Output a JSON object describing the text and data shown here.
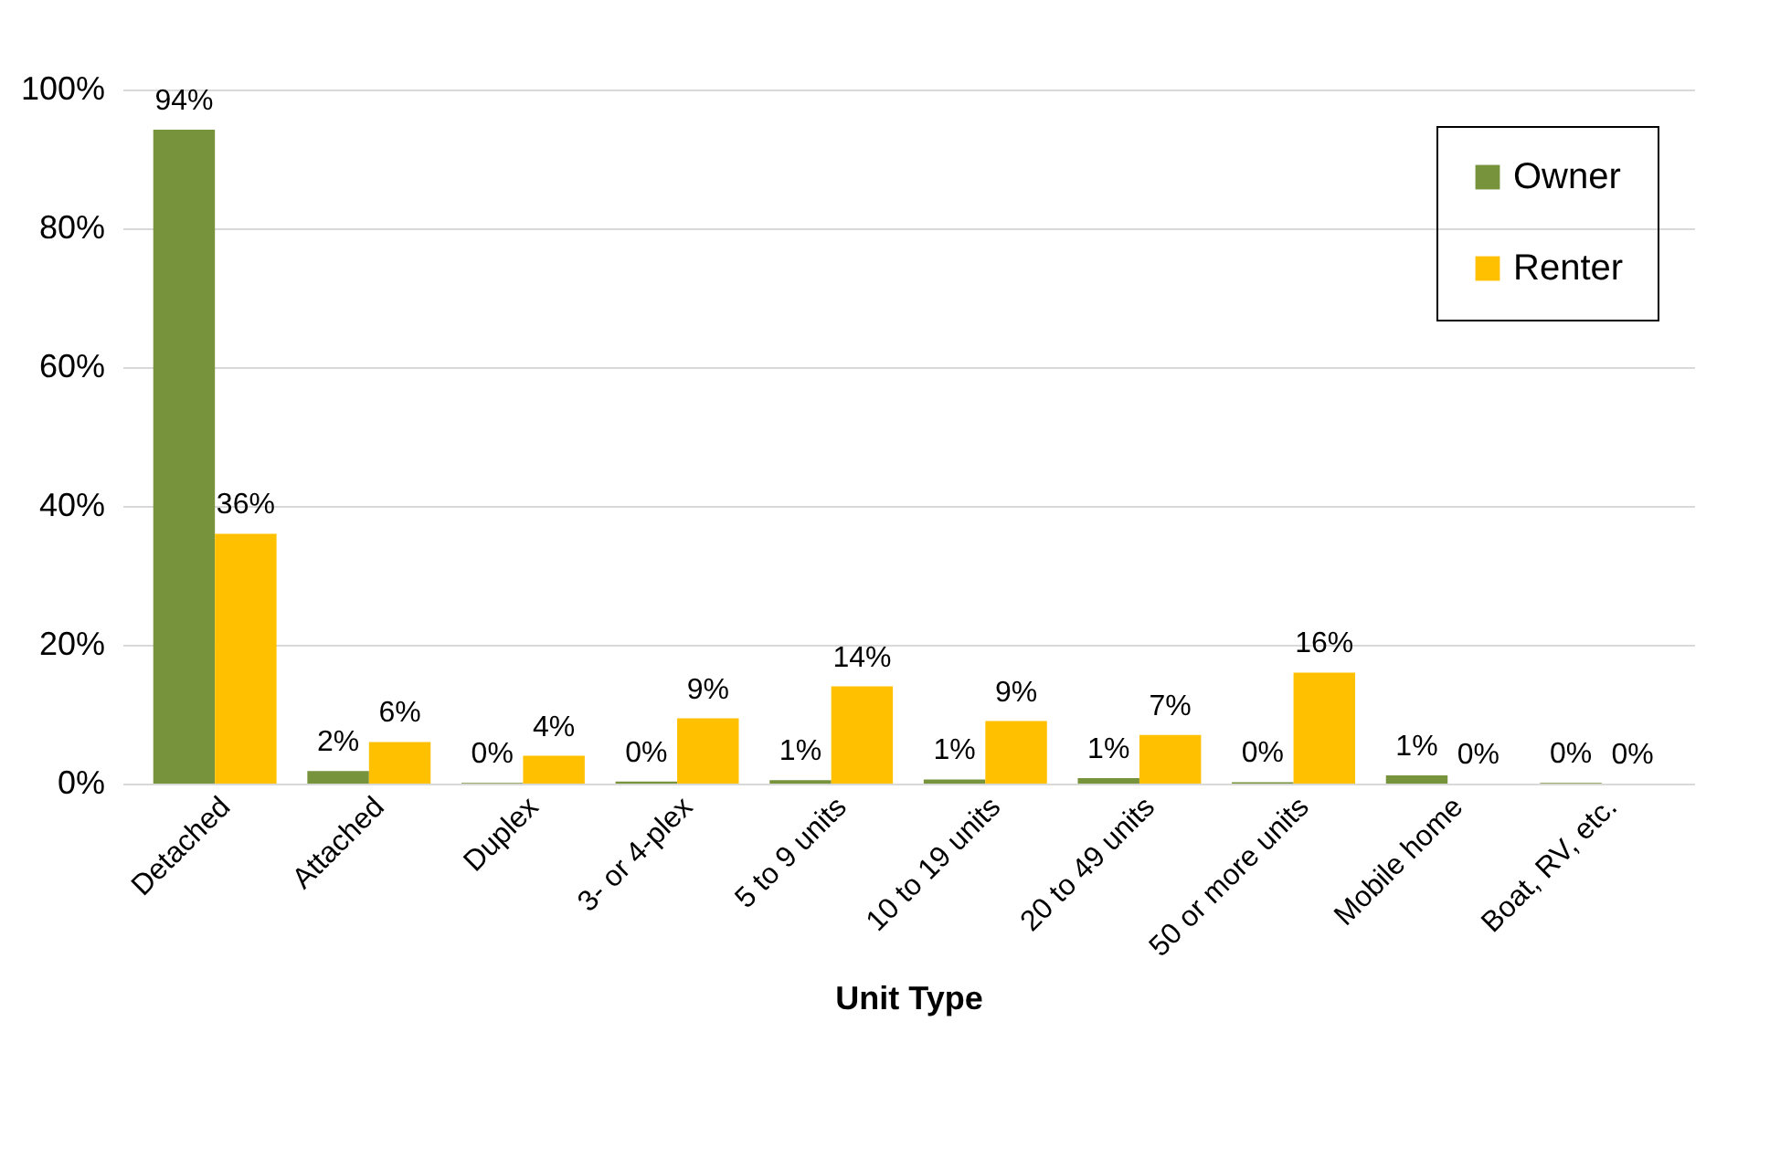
{
  "chart_data": {
    "type": "bar",
    "categories": [
      "Detached",
      "Attached",
      "Duplex",
      "3- or 4-plex",
      "5 to 9 units",
      "10 to 19 units",
      "20 to 49 units",
      "50 or more units",
      "Mobile home",
      "Boat, RV, etc."
    ],
    "series": [
      {
        "name": "Owner",
        "color": "#77933c",
        "values": [
          94.2,
          1.8,
          0.1,
          0.3,
          0.5,
          0.6,
          0.8,
          0.2,
          1.2,
          0.1
        ],
        "value_labels": [
          "94%",
          "2%",
          "0%",
          "0%",
          "1%",
          "1%",
          "1%",
          "0%",
          "1%",
          "0%"
        ]
      },
      {
        "name": "Renter",
        "color": "#ffc000",
        "values": [
          36,
          6,
          4,
          9.4,
          14,
          9,
          7,
          16,
          0,
          0
        ],
        "value_labels": [
          "36%",
          "6%",
          "4%",
          "9%",
          "14%",
          "9%",
          "7%",
          "16%",
          "0%",
          "0%"
        ]
      }
    ],
    "xlabel": "Unit Type",
    "ylim": [
      0,
      100
    ],
    "yticks": [
      {
        "value": 0,
        "label": "0%"
      },
      {
        "value": 20,
        "label": "20%"
      },
      {
        "value": 40,
        "label": "40%"
      },
      {
        "value": 60,
        "label": "60%"
      },
      {
        "value": 80,
        "label": "80%"
      },
      {
        "value": 100,
        "label": "100%"
      }
    ],
    "grid": "y",
    "legend": "top right"
  }
}
